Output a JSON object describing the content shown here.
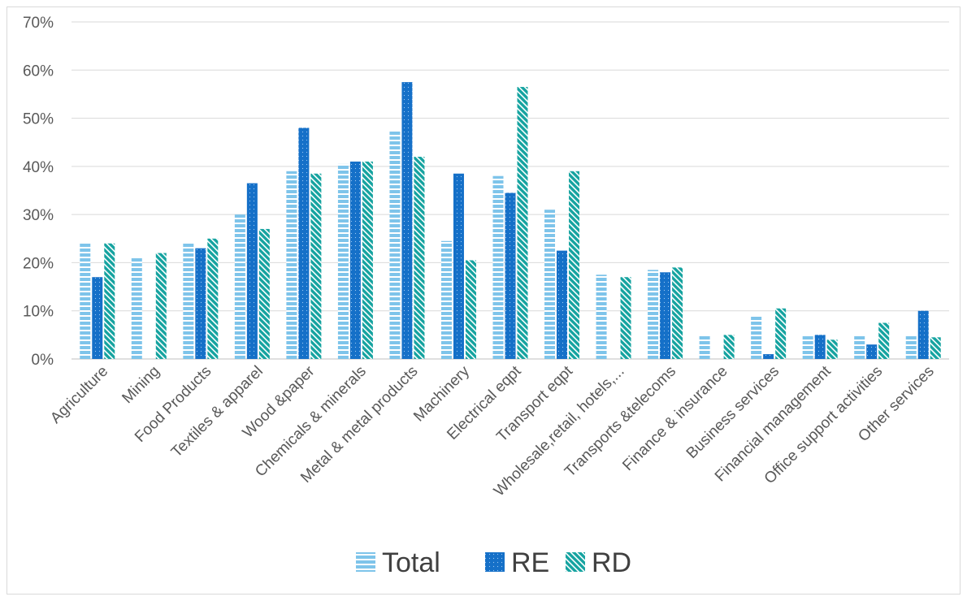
{
  "chart_data": {
    "type": "bar",
    "categories": [
      "Agriculture",
      "Mining",
      "Food Products",
      "Textiles & apparel",
      "Wood &paper",
      "Chemicals & minerals",
      "Metal & metal products",
      "Machinery",
      "Electrical eqpt",
      "Transport eqpt",
      "Wholesale,retail, hotels,...",
      "Transports &telecoms",
      "Finance & insurance",
      "Business services",
      "Financial management",
      "Office support activities",
      "Other services"
    ],
    "series": [
      {
        "name": "Total",
        "values": [
          24,
          21,
          24,
          30,
          39,
          40.5,
          47.5,
          24.5,
          38,
          31,
          17.5,
          18.5,
          5,
          9,
          5,
          5,
          5
        ]
      },
      {
        "name": "RE",
        "values": [
          17,
          null,
          23,
          36.5,
          48,
          41,
          57.5,
          38.5,
          34.5,
          22.5,
          null,
          18,
          null,
          1,
          5,
          3,
          10
        ]
      },
      {
        "name": "RD",
        "values": [
          24,
          22,
          25,
          27,
          38.5,
          41,
          42,
          20.5,
          56.5,
          39,
          17,
          19,
          5,
          10.5,
          4,
          7.5,
          4.5
        ]
      }
    ],
    "ylim": [
      0,
      70
    ],
    "yticks": [
      "0%",
      "10%",
      "20%",
      "30%",
      "40%",
      "50%",
      "60%",
      "70%"
    ],
    "legend_position": "bottom",
    "grid": true,
    "colors": {
      "Total": "#7ec4ea",
      "RE": "#1570c8",
      "RD": "#15a3a0"
    }
  }
}
